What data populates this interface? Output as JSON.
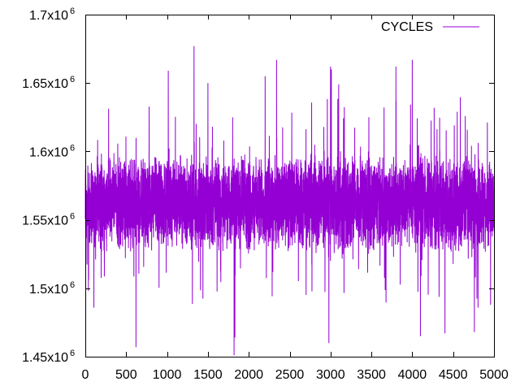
{
  "chart_data": {
    "type": "line",
    "title": "",
    "xlabel": "",
    "ylabel": "",
    "xlim": [
      0,
      5000
    ],
    "ylim": [
      1450000,
      1700000
    ],
    "x_ticks": [
      {
        "value": 0,
        "label": "0"
      },
      {
        "value": 500,
        "label": "500"
      },
      {
        "value": 1000,
        "label": "1000"
      },
      {
        "value": 1500,
        "label": "1500"
      },
      {
        "value": 2000,
        "label": "2000"
      },
      {
        "value": 2500,
        "label": "2500"
      },
      {
        "value": 3000,
        "label": "3000"
      },
      {
        "value": 3500,
        "label": "3500"
      },
      {
        "value": 4000,
        "label": "4000"
      },
      {
        "value": 4500,
        "label": "4500"
      },
      {
        "value": 5000,
        "label": "5000"
      }
    ],
    "y_ticks": [
      {
        "value": 1450000,
        "label": "1.45x10",
        "exp": "6"
      },
      {
        "value": 1500000,
        "label": "1.5x10",
        "exp": "6"
      },
      {
        "value": 1550000,
        "label": "1.55x10",
        "exp": "6"
      },
      {
        "value": 1600000,
        "label": "1.6x10",
        "exp": "6"
      },
      {
        "value": 1650000,
        "label": "1.65x10",
        "exp": "6"
      },
      {
        "value": 1700000,
        "label": "1.7x10",
        "exp": "6"
      }
    ],
    "grid": false,
    "legend_position": "top-right",
    "series": [
      {
        "name": "CYCLES",
        "color": "#9400d3",
        "n_points": 5000,
        "typical_min": 1530000,
        "typical_max": 1595000,
        "spikes": [
          {
            "x": 1330,
            "y": 1677000
          },
          {
            "x": 2340,
            "y": 1667000
          },
          {
            "x": 1015,
            "y": 1659000
          },
          {
            "x": 1820,
            "y": 1451000
          },
          {
            "x": 1830,
            "y": 1464000
          },
          {
            "x": 2980,
            "y": 1460000
          },
          {
            "x": 620,
            "y": 1457000
          },
          {
            "x": 3000,
            "y": 1662000
          },
          {
            "x": 2200,
            "y": 1655000
          },
          {
            "x": 3800,
            "y": 1662000
          },
          {
            "x": 3010,
            "y": 1660000
          },
          {
            "x": 4000,
            "y": 1667000
          },
          {
            "x": 1500,
            "y": 1650000
          },
          {
            "x": 4550,
            "y": 1629000
          },
          {
            "x": 4760,
            "y": 1468000
          },
          {
            "x": 4100,
            "y": 1465000
          },
          {
            "x": 4400,
            "y": 1467000
          },
          {
            "x": 3100,
            "y": 1649000
          }
        ]
      }
    ]
  }
}
